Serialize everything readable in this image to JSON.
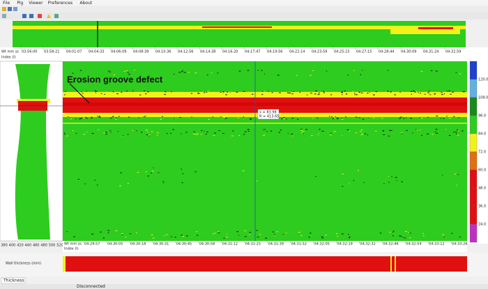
{
  "menu": [
    "File",
    "Pig",
    "Viewer",
    "Preferences",
    "About"
  ],
  "overview_axis": {
    "row_labels": [
      "Wt mm ss",
      "Index (l)"
    ],
    "times": [
      "03:56:00",
      "03:58:21",
      "04:01:07",
      "04:04:33",
      "04:06:09",
      "04:08:39",
      "04:10:36",
      "04:12:56",
      "04:14:38",
      "04:16:20",
      "04:17:47",
      "04:19:56",
      "04:22:14",
      "04:23:59",
      "04:25:23",
      "04:27:15",
      "04:28:44",
      "04:30:09",
      "04:31:24",
      "04:32:59"
    ]
  },
  "map": {
    "annotation": "Erosion groove defect",
    "cursor": [
      "x = 83.98",
      "R = 413.65"
    ],
    "bottom_axis": {
      "row_labels": [
        "Wt mm ss",
        "Index (l)"
      ],
      "times": [
        "04:29:57",
        "04:30:05",
        "04:30:18",
        "04:30:31",
        "04:30:45",
        "04:30:58",
        "04:31:12",
        "04:31:25",
        "04:31:39",
        "04:31:52",
        "04:32:05",
        "04:32:19",
        "04:32:32",
        "04:32:46",
        "04:32:59",
        "04:33:12",
        "04:33:26"
      ]
    }
  },
  "profile_axis": [
    "380",
    "400",
    "420",
    "440",
    "460",
    "480",
    "500",
    "520"
  ],
  "color_scale": [
    "120.0",
    "108.0",
    "96.0",
    "84.0",
    "72.0",
    "60.0",
    "48.0",
    "36.0",
    "24.0"
  ],
  "bottom_strip_label": "Wall thickness (mm)",
  "tab": "Thickness",
  "status": "Disconnected"
}
